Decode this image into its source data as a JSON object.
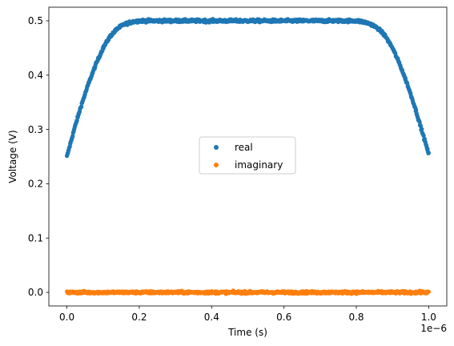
{
  "chart_data": {
    "type": "scatter",
    "title": "",
    "xlabel": "Time (s)",
    "ylabel": "Voltage (V)",
    "x_offset_text": "1e−6",
    "x_scale_factor": 1e-06,
    "xlim": [
      -0.05,
      1.05
    ],
    "ylim": [
      -0.025,
      0.525
    ],
    "x_ticks": [
      0.0,
      0.2,
      0.4,
      0.6,
      0.8,
      1.0
    ],
    "x_tick_labels": [
      "0.0",
      "0.2",
      "0.4",
      "0.6",
      "0.8",
      "1.0"
    ],
    "y_ticks": [
      0.0,
      0.1,
      0.2,
      0.3,
      0.4,
      0.5
    ],
    "y_tick_labels": [
      "0.0",
      "0.1",
      "0.2",
      "0.3",
      "0.4",
      "0.5"
    ],
    "grid": false,
    "legend_position": "center",
    "series": [
      {
        "name": "real",
        "color": "#1f77b4",
        "x": [
          0.0,
          0.02,
          0.04,
          0.06,
          0.08,
          0.1,
          0.12,
          0.14,
          0.16,
          0.18,
          0.2,
          0.25,
          0.3,
          0.35,
          0.4,
          0.45,
          0.5,
          0.55,
          0.6,
          0.65,
          0.7,
          0.75,
          0.8,
          0.82,
          0.84,
          0.86,
          0.88,
          0.9,
          0.92,
          0.94,
          0.96,
          0.98,
          1.0
        ],
        "y": [
          0.25,
          0.3,
          0.345,
          0.385,
          0.42,
          0.45,
          0.472,
          0.486,
          0.494,
          0.498,
          0.5,
          0.5,
          0.5,
          0.5,
          0.5,
          0.5,
          0.5,
          0.5,
          0.5,
          0.5,
          0.5,
          0.5,
          0.5,
          0.498,
          0.494,
          0.486,
          0.472,
          0.45,
          0.42,
          0.385,
          0.345,
          0.3,
          0.255
        ]
      },
      {
        "name": "imaginary",
        "color": "#ff7f0e",
        "x": [
          0.0,
          0.1,
          0.2,
          0.3,
          0.4,
          0.5,
          0.6,
          0.7,
          0.8,
          0.9,
          1.0
        ],
        "y": [
          0.0,
          0.0,
          0.0,
          0.0,
          0.0,
          0.0,
          0.0,
          0.0,
          0.0,
          0.0,
          0.0
        ]
      }
    ]
  }
}
